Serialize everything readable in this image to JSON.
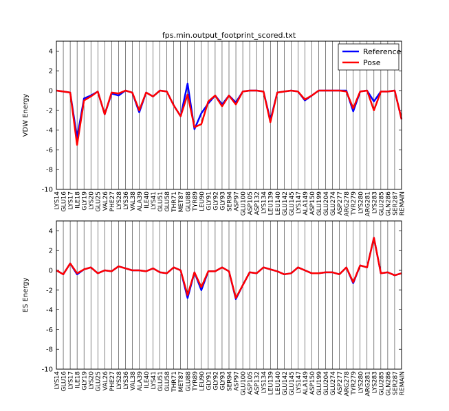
{
  "figure_title": "fps.min.output_footprint_scored.txt",
  "colors": {
    "reference": "#0000ff",
    "pose": "#ff0000",
    "axes": "#000000",
    "grid": "#000000"
  },
  "chart_data": [
    {
      "type": "line",
      "title": "fps.min.output_footprint_scored.txt",
      "xlabel": "",
      "ylabel": "VDW Energy",
      "ylim": [
        -10,
        5
      ],
      "yticks": [
        -10,
        -8,
        -6,
        -4,
        -2,
        0,
        2,
        4
      ],
      "grid": "vertical lines at each residue",
      "legend": "top-right",
      "categories": [
        "LYS14",
        "GLU16",
        "LYS17",
        "ILE18",
        "GLY19",
        "LYS20",
        "GLU25",
        "VAL26",
        "PHE27",
        "LYS28",
        "LYS36",
        "VAL38",
        "ALA39",
        "ILE40",
        "LYS41",
        "GLU51",
        "GLU58",
        "THR71",
        "MET87",
        "GLU88",
        "TYR89",
        "LEU90",
        "GLY91",
        "GLY92",
        "GLY93",
        "SER94",
        "ASP97",
        "GLU100",
        "ASP105",
        "ASP132",
        "LYS134",
        "LEU139",
        "LEU140",
        "GLU142",
        "GLU145",
        "LYS147",
        "ALA149",
        "ASP150",
        "GLU199",
        "GLU204",
        "GLU274",
        "ASP277",
        "ARG278",
        "TYR279",
        "LYS280",
        "ARG281",
        "LYS283",
        "GLU285",
        "GLN286",
        "SER287",
        "REMAIN"
      ],
      "series": [
        {
          "name": "Reference",
          "values": [
            0.0,
            -0.1,
            -0.2,
            -4.8,
            -0.8,
            -0.5,
            -0.1,
            -2.4,
            -0.3,
            -0.5,
            0.0,
            -0.2,
            -2.2,
            -0.2,
            -0.6,
            0.0,
            -0.1,
            -1.5,
            -2.6,
            0.7,
            -3.9,
            -2.3,
            -1.3,
            -0.5,
            -1.4,
            -0.5,
            -1.2,
            -0.1,
            0.0,
            0.0,
            -0.1,
            -3.0,
            -0.2,
            -0.1,
            0.0,
            -0.1,
            -1.0,
            -0.5,
            0.0,
            0.0,
            0.0,
            0.0,
            0.0,
            -2.1,
            -0.1,
            0.0,
            -1.1,
            -0.1,
            -0.1,
            0.0,
            -2.9
          ]
        },
        {
          "name": "Pose",
          "values": [
            0.0,
            -0.1,
            -0.2,
            -5.5,
            -1.0,
            -0.6,
            -0.1,
            -2.4,
            -0.2,
            -0.3,
            0.0,
            -0.2,
            -2.0,
            -0.2,
            -0.6,
            0.0,
            -0.1,
            -1.5,
            -2.6,
            -0.4,
            -3.7,
            -3.4,
            -1.1,
            -0.5,
            -1.6,
            -0.5,
            -1.4,
            -0.1,
            0.0,
            0.0,
            -0.1,
            -3.2,
            -0.2,
            -0.1,
            0.0,
            -0.1,
            -0.9,
            -0.5,
            0.0,
            0.0,
            0.0,
            0.0,
            -0.1,
            -1.8,
            -0.1,
            0.0,
            -2.0,
            -0.1,
            -0.1,
            0.0,
            -2.9
          ]
        }
      ]
    },
    {
      "type": "line",
      "title": "",
      "xlabel": "",
      "ylabel": "ES Energy",
      "ylim": [
        -10,
        5
      ],
      "yticks": [
        -10,
        -8,
        -6,
        -4,
        -2,
        0,
        2,
        4
      ],
      "grid": "vertical lines at each residue",
      "categories": [
        "LYS14",
        "GLU16",
        "LYS17",
        "ILE18",
        "GLY19",
        "LYS20",
        "GLU25",
        "VAL26",
        "PHE27",
        "LYS28",
        "LYS36",
        "VAL38",
        "ALA39",
        "ILE40",
        "LYS41",
        "GLU51",
        "GLU58",
        "THR71",
        "MET87",
        "GLU88",
        "TYR89",
        "LEU90",
        "GLY91",
        "GLY92",
        "GLY93",
        "SER94",
        "ASP97",
        "GLU100",
        "ASP105",
        "ASP132",
        "LYS134",
        "LEU139",
        "LEU140",
        "GLU142",
        "GLU145",
        "LYS147",
        "ALA149",
        "ASP150",
        "GLU199",
        "GLU204",
        "GLU274",
        "ASP277",
        "ARG278",
        "TYR279",
        "LYS280",
        "ARG281",
        "LYS283",
        "GLU285",
        "GLN286",
        "SER287",
        "REMAIN"
      ],
      "series": [
        {
          "name": "Reference",
          "values": [
            0.0,
            -0.4,
            0.7,
            -0.4,
            0.1,
            0.3,
            -0.3,
            0.0,
            -0.1,
            0.4,
            0.2,
            0.0,
            0.0,
            -0.1,
            0.2,
            -0.2,
            -0.3,
            0.3,
            0.0,
            -2.8,
            -0.2,
            -2.0,
            -0.1,
            -0.1,
            0.3,
            -0.1,
            -2.9,
            -1.5,
            -0.2,
            -0.3,
            0.3,
            0.1,
            -0.1,
            -0.4,
            -0.3,
            0.3,
            0.0,
            -0.3,
            -0.3,
            -0.2,
            -0.2,
            -0.4,
            0.3,
            -1.3,
            0.5,
            0.3,
            3.3,
            -0.3,
            -0.2,
            -0.5,
            -0.3
          ]
        },
        {
          "name": "Pose",
          "values": [
            0.0,
            -0.4,
            0.7,
            -0.3,
            0.1,
            0.3,
            -0.3,
            0.0,
            -0.1,
            0.4,
            0.2,
            0.0,
            0.0,
            -0.1,
            0.2,
            -0.2,
            -0.3,
            0.3,
            0.0,
            -2.5,
            -0.2,
            -1.7,
            -0.1,
            -0.1,
            0.3,
            -0.1,
            -2.8,
            -1.5,
            -0.2,
            -0.3,
            0.3,
            0.1,
            -0.1,
            -0.4,
            -0.3,
            0.3,
            0.0,
            -0.3,
            -0.3,
            -0.2,
            -0.2,
            -0.4,
            0.3,
            -1.2,
            0.5,
            0.3,
            3.3,
            -0.3,
            -0.2,
            -0.5,
            -0.3
          ]
        }
      ]
    }
  ]
}
